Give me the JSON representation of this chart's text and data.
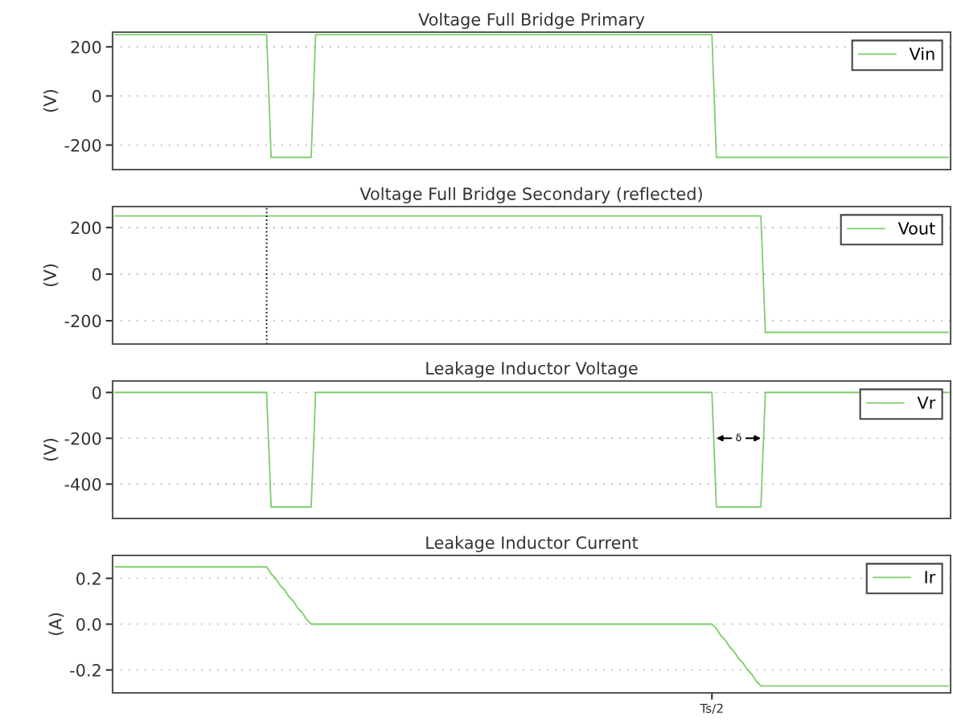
{
  "chart_data": [
    {
      "type": "line",
      "title": "Voltage Full Bridge Primary",
      "ylabel": "(V)",
      "ylim": [
        -300,
        260
      ],
      "yticks": [
        -200,
        0,
        200
      ],
      "grid": "y",
      "legend": "top right",
      "tick_labels": "y",
      "categories": [
        null,
        null,
        null,
        null,
        null,
        null,
        null,
        null,
        null,
        null,
        null,
        null,
        null,
        null,
        null,
        null,
        null,
        null,
        null,
        null,
        null,
        null,
        null,
        null,
        null,
        null,
        null,
        null,
        null,
        null,
        null,
        null,
        null,
        null,
        null,
        null,
        null,
        null,
        null,
        null,
        null,
        null,
        null,
        null,
        null,
        null,
        null,
        null,
        null,
        null,
        null,
        null,
        null,
        null,
        null,
        null,
        null,
        null,
        null,
        null,
        null,
        null,
        null,
        null,
        null,
        null,
        null,
        null,
        null,
        null,
        null,
        null,
        null,
        null,
        null,
        null,
        null,
        null,
        null,
        null,
        null,
        null,
        null,
        null,
        null,
        null,
        null,
        null,
        null,
        null,
        null,
        null,
        null,
        null,
        null,
        null,
        null,
        null,
        null,
        null,
        null,
        null,
        null,
        null,
        null,
        null,
        null,
        null,
        null,
        null,
        null,
        null,
        null,
        null,
        null,
        null,
        null,
        null,
        null,
        null,
        null,
        null,
        null,
        null,
        null,
        null,
        null,
        null,
        null,
        null,
        null,
        null,
        null,
        null,
        null,
        null,
        null,
        null,
        null,
        null,
        null,
        null,
        null,
        null,
        null,
        null,
        null,
        null,
        null,
        null,
        null,
        null,
        null,
        null,
        null,
        null,
        null,
        null,
        null,
        null,
        null,
        null,
        null,
        null,
        null,
        null,
        null,
        null,
        null,
        null,
        null,
        null,
        null,
        null,
        null,
        null,
        null,
        null,
        null,
        null,
        null,
        null,
        null,
        null,
        null,
        null,
        null,
        null
      ],
      "series": [
        {
          "name": "Vin",
          "color": "#7ccf6a",
          "values": [
            250,
            250,
            250,
            250,
            250,
            250,
            250,
            250,
            250,
            250,
            250,
            250,
            250,
            250,
            250,
            250,
            250,
            250,
            250,
            250,
            250,
            250,
            250,
            250,
            250,
            250,
            250,
            250,
            250,
            250,
            250,
            250,
            250,
            250,
            250,
            -250,
            -250,
            -250,
            -250,
            -250,
            -250,
            -250,
            -250,
            -250,
            -250,
            250,
            250,
            250,
            250,
            250,
            250,
            250,
            250,
            250,
            250,
            250,
            250,
            250,
            250,
            250,
            250,
            250,
            250,
            250,
            250,
            250,
            250,
            250,
            250,
            250,
            250,
            250,
            250,
            250,
            250,
            250,
            250,
            250,
            250,
            250,
            250,
            250,
            250,
            250,
            250,
            250,
            250,
            250,
            250,
            250,
            250,
            250,
            250,
            250,
            250,
            250,
            250,
            250,
            250,
            250,
            250,
            250,
            250,
            250,
            250,
            250,
            250,
            250,
            250,
            250,
            250,
            250,
            250,
            250,
            250,
            250,
            250,
            250,
            250,
            250,
            250,
            250,
            250,
            250,
            250,
            250,
            250,
            250,
            250,
            250,
            250,
            250,
            250,
            250,
            250,
            -250,
            -250,
            -250,
            -250,
            -250,
            -250,
            -250,
            -250,
            -250,
            -250,
            -250,
            -250,
            -250,
            -250,
            -250,
            -250,
            -250,
            -250,
            -250,
            -250,
            -250,
            -250,
            -250,
            -250,
            -250,
            -250,
            -250,
            -250,
            -250,
            -250,
            -250,
            -250,
            -250,
            -250,
            -250,
            -250,
            -250,
            -250,
            -250,
            -250,
            -250,
            -250,
            -250,
            -250,
            -250,
            -250,
            -250,
            -250,
            -250,
            -250,
            -250,
            -250,
            -250
          ]
        }
      ]
    },
    {
      "type": "line",
      "title": "Voltage Full Bridge Secondary (reflected)",
      "ylabel": "(V)",
      "ylim": [
        -300,
        290
      ],
      "yticks": [
        -200,
        0,
        200
      ],
      "grid": "y",
      "legend": "top right",
      "tick_labels": "y",
      "categories": [
        null,
        null,
        null,
        null,
        null,
        null,
        null,
        null,
        null,
        null,
        null,
        null,
        null,
        null,
        null,
        null,
        null,
        null,
        null,
        null,
        null,
        null,
        null,
        null,
        null,
        null,
        null,
        null,
        null,
        null,
        null,
        null,
        null,
        null,
        null,
        null,
        null,
        null,
        null,
        null,
        null,
        null,
        null,
        null,
        null,
        null,
        null,
        null,
        null,
        null,
        null,
        null,
        null,
        null,
        null,
        null,
        null,
        null,
        null,
        null,
        null,
        null,
        null,
        null,
        null,
        null,
        null,
        null,
        null,
        null,
        null,
        null,
        null,
        null,
        null,
        null,
        null,
        null,
        null,
        null,
        null,
        null,
        null,
        null,
        null,
        null,
        null,
        null,
        null,
        null,
        null,
        null,
        null,
        null,
        null,
        null,
        null,
        null,
        null,
        null,
        null,
        null,
        null,
        null,
        null,
        null,
        null,
        null,
        null,
        null,
        null,
        null,
        null,
        null,
        null,
        null,
        null,
        null,
        null,
        null,
        null,
        null,
        null,
        null,
        null,
        null,
        null,
        null,
        null,
        null,
        null,
        null,
        null,
        null,
        null,
        null,
        null,
        null,
        null,
        null,
        null,
        null,
        null,
        null,
        null,
        null,
        null,
        null,
        null,
        null,
        null,
        null,
        null,
        null,
        null,
        null,
        null,
        null,
        null,
        null,
        null,
        null,
        null,
        null,
        null,
        null,
        null,
        null,
        null,
        null,
        null,
        null,
        null,
        null,
        null,
        null,
        null,
        null,
        null,
        null,
        null,
        null,
        null,
        null,
        null,
        null,
        null,
        null
      ],
      "series": [
        {
          "name": "Vout",
          "color": "#7ccf6a",
          "values": [
            250,
            250,
            250,
            250,
            250,
            250,
            250,
            250,
            250,
            250,
            250,
            250,
            250,
            250,
            250,
            250,
            250,
            250,
            250,
            250,
            250,
            250,
            250,
            250,
            250,
            250,
            250,
            250,
            250,
            250,
            250,
            250,
            250,
            250,
            250,
            250,
            250,
            250,
            250,
            250,
            250,
            250,
            250,
            250,
            250,
            250,
            250,
            250,
            250,
            250,
            250,
            250,
            250,
            250,
            250,
            250,
            250,
            250,
            250,
            250,
            250,
            250,
            250,
            250,
            250,
            250,
            250,
            250,
            250,
            250,
            250,
            250,
            250,
            250,
            250,
            250,
            250,
            250,
            250,
            250,
            250,
            250,
            250,
            250,
            250,
            250,
            250,
            250,
            250,
            250,
            250,
            250,
            250,
            250,
            250,
            250,
            250,
            250,
            250,
            250,
            250,
            250,
            250,
            250,
            250,
            250,
            250,
            250,
            250,
            250,
            250,
            250,
            250,
            250,
            250,
            250,
            250,
            250,
            250,
            250,
            250,
            250,
            250,
            250,
            250,
            250,
            250,
            250,
            250,
            250,
            250,
            250,
            250,
            250,
            250,
            250,
            250,
            250,
            250,
            250,
            250,
            250,
            250,
            250,
            250,
            250,
            -250,
            -250,
            -250,
            -250,
            -250,
            -250,
            -250,
            -250,
            -250,
            -250,
            -250,
            -250,
            -250,
            -250,
            -250,
            -250,
            -250,
            -250,
            -250,
            -250,
            -250,
            -250,
            -250,
            -250,
            -250,
            -250,
            -250,
            -250,
            -250,
            -250,
            -250,
            -250,
            -250,
            -250,
            -250,
            -250,
            -250,
            -250,
            -250,
            -250,
            -250,
            -250
          ]
        }
      ]
    },
    {
      "type": "line",
      "title": "Leakage Inductor Voltage",
      "ylabel": "(V)",
      "ylim": [
        -550,
        50
      ],
      "yticks": [
        -400,
        -200,
        0
      ],
      "grid": "y",
      "legend": "top right",
      "tick_labels": "y",
      "annotations": [
        {
          "text": "δ",
          "y": -200
        }
      ],
      "categories": [
        null,
        null,
        null,
        null,
        null,
        null,
        null,
        null,
        null,
        null,
        null,
        null,
        null,
        null,
        null,
        null,
        null,
        null,
        null,
        null,
        null,
        null,
        null,
        null,
        null,
        null,
        null,
        null,
        null,
        null,
        null,
        null,
        null,
        null,
        null,
        null,
        null,
        null,
        null,
        null,
        null,
        null,
        null,
        null,
        null,
        null,
        null,
        null,
        null,
        null,
        null,
        null,
        null,
        null,
        null,
        null,
        null,
        null,
        null,
        null,
        null,
        null,
        null,
        null,
        null,
        null,
        null,
        null,
        null,
        null,
        null,
        null,
        null,
        null,
        null,
        null,
        null,
        null,
        null,
        null,
        null,
        null,
        null,
        null,
        null,
        null,
        null,
        null,
        null,
        null,
        null,
        null,
        null,
        null,
        null,
        null,
        null,
        null,
        null,
        null,
        null,
        null,
        null,
        null,
        null,
        null,
        null,
        null,
        null,
        null,
        null,
        null,
        null,
        null,
        null,
        null,
        null,
        null,
        null,
        null,
        null,
        null,
        null,
        null,
        null,
        null,
        null,
        null,
        null,
        null,
        null,
        null,
        null,
        null,
        null,
        null,
        null,
        null,
        null,
        null,
        null,
        null,
        null,
        null,
        null,
        null,
        null,
        null,
        null,
        null,
        null,
        null,
        null,
        null,
        null,
        null,
        null,
        null,
        null,
        null,
        null,
        null,
        null,
        null,
        null,
        null,
        null,
        null,
        null,
        null,
        null,
        null,
        null,
        null,
        null,
        null,
        null,
        null,
        null,
        null,
        null,
        null,
        null,
        null,
        null,
        null,
        null,
        null
      ],
      "series": [
        {
          "name": "Vr",
          "color": "#7ccf6a",
          "values": [
            0,
            0,
            0,
            0,
            0,
            0,
            0,
            0,
            0,
            0,
            0,
            0,
            0,
            0,
            0,
            0,
            0,
            0,
            0,
            0,
            0,
            0,
            0,
            0,
            0,
            0,
            0,
            0,
            0,
            0,
            0,
            0,
            0,
            0,
            0,
            -500,
            -500,
            -500,
            -500,
            -500,
            -500,
            -500,
            -500,
            -500,
            -500,
            0,
            0,
            0,
            0,
            0,
            0,
            0,
            0,
            0,
            0,
            0,
            0,
            0,
            0,
            0,
            0,
            0,
            0,
            0,
            0,
            0,
            0,
            0,
            0,
            0,
            0,
            0,
            0,
            0,
            0,
            0,
            0,
            0,
            0,
            0,
            0,
            0,
            0,
            0,
            0,
            0,
            0,
            0,
            0,
            0,
            0,
            0,
            0,
            0,
            0,
            0,
            0,
            0,
            0,
            0,
            0,
            0,
            0,
            0,
            0,
            0,
            0,
            0,
            0,
            0,
            0,
            0,
            0,
            0,
            0,
            0,
            0,
            0,
            0,
            0,
            0,
            0,
            0,
            0,
            0,
            0,
            0,
            0,
            0,
            0,
            0,
            0,
            0,
            0,
            0,
            -500,
            -500,
            -500,
            -500,
            -500,
            -500,
            -500,
            -500,
            -500,
            -500,
            -500,
            0,
            0,
            0,
            0,
            0,
            0,
            0,
            0,
            0,
            0,
            0,
            0,
            0,
            0,
            0,
            0,
            0,
            0,
            0,
            0,
            0,
            0,
            null,
            null,
            null,
            null,
            null,
            null,
            null,
            null,
            null,
            null,
            null,
            null,
            null,
            null,
            null,
            null,
            null,
            null,
            0,
            0
          ]
        }
      ]
    },
    {
      "type": "line",
      "title": "Leakage Inductor Current",
      "ylabel": "(A)",
      "ylim": [
        -0.3,
        0.3
      ],
      "yticks": [
        {
          "value": -0.2,
          "label": "-0.2"
        },
        {
          "value": 0,
          "label": "0.0"
        },
        {
          "value": 0.2,
          "label": "0.2"
        }
      ],
      "grid": "y",
      "legend": "top right",
      "categories": [
        null,
        null,
        null,
        null,
        null,
        null,
        null,
        null,
        null,
        null,
        null,
        null,
        null,
        null,
        null,
        null,
        null,
        null,
        null,
        null,
        null,
        null,
        null,
        null,
        null,
        null,
        null,
        null,
        null,
        null,
        null,
        null,
        null,
        null,
        null,
        null,
        null,
        null,
        null,
        null,
        null,
        null,
        null,
        null,
        null,
        null,
        null,
        null,
        null,
        null,
        null,
        null,
        null,
        null,
        null,
        null,
        null,
        null,
        null,
        null,
        null,
        null,
        null,
        null,
        null,
        null,
        null,
        null,
        null,
        null,
        null,
        null,
        null,
        null,
        null,
        null,
        null,
        null,
        null,
        null,
        null,
        null,
        null,
        null,
        null,
        null,
        null,
        null,
        null,
        null,
        null,
        null,
        null,
        null,
        null,
        null,
        null,
        null,
        null,
        null,
        null,
        null,
        null,
        null,
        null,
        null,
        null,
        null,
        null,
        null,
        null,
        null,
        null,
        null,
        null,
        null,
        null,
        null,
        null,
        null,
        null,
        null,
        null,
        null,
        null,
        null,
        null,
        null,
        null,
        null,
        null,
        null,
        null,
        null,
        "Ts/2",
        null,
        null,
        null,
        null,
        null,
        null,
        null,
        null,
        null,
        null,
        null,
        null,
        null,
        null,
        null,
        null,
        null,
        null,
        null,
        null,
        null,
        null,
        null,
        null,
        null,
        null,
        null,
        null,
        null,
        null,
        null,
        null,
        null,
        null,
        null,
        null,
        null,
        null,
        null,
        null,
        null,
        null,
        null,
        null,
        null,
        null,
        null,
        null,
        null,
        null,
        null,
        null,
        null
      ],
      "series": [
        {
          "name": "Ir",
          "color": "#7ccf6a",
          "values": [
            0.25,
            0.25,
            0.25,
            0.25,
            0.25,
            0.25,
            0.25,
            0.25,
            0.25,
            0.25,
            0.25,
            0.25,
            0.25,
            0.25,
            0.25,
            0.25,
            0.25,
            0.25,
            0.25,
            0.25,
            0.25,
            0.25,
            0.25,
            0.25,
            0.25,
            0.25,
            0.25,
            0.25,
            0.25,
            0.25,
            0.25,
            0.25,
            0.25,
            0.25,
            0.25,
            0.22,
            0.2,
            0.17,
            0.15,
            0.12,
            0.1,
            0.07,
            0.05,
            0.02,
            0,
            0,
            0,
            0,
            0,
            0,
            0,
            0,
            0,
            0,
            0,
            0,
            0,
            0,
            0,
            0,
            0,
            0,
            0,
            0,
            0,
            0,
            0,
            0,
            0,
            0,
            0,
            0,
            0,
            0,
            0,
            0,
            0,
            0,
            0,
            0,
            0,
            0,
            0,
            0,
            0,
            0,
            0,
            0,
            0,
            0,
            0,
            0,
            0,
            0,
            0,
            0,
            0,
            0,
            0,
            0,
            0,
            0,
            0,
            0,
            0,
            0,
            0,
            0,
            0,
            0,
            0,
            0,
            0,
            0,
            0,
            0,
            0,
            0,
            0,
            0,
            0,
            0,
            0,
            0,
            0,
            0,
            0,
            0,
            0,
            0,
            0,
            0,
            0,
            0,
            0,
            -0.02,
            -0.05,
            -0.07,
            -0.1,
            -0.12,
            -0.15,
            -0.17,
            -0.2,
            -0.22,
            -0.25,
            -0.27,
            -0.27,
            -0.27,
            -0.27,
            -0.27,
            -0.27,
            -0.27,
            -0.27,
            -0.27,
            -0.27,
            -0.27,
            -0.27,
            -0.27,
            -0.27,
            -0.27,
            -0.27,
            -0.27,
            -0.27,
            -0.27,
            -0.27,
            -0.27,
            -0.27,
            -0.27,
            -0.27,
            -0.27,
            -0.27,
            -0.27,
            -0.27,
            -0.27,
            -0.27,
            -0.27,
            -0.27,
            -0.27,
            -0.27,
            -0.27,
            -0.27,
            -0.27,
            -0.27,
            -0.27,
            -0.27,
            -0.27,
            -0.27,
            -0.27
          ]
        }
      ]
    }
  ]
}
